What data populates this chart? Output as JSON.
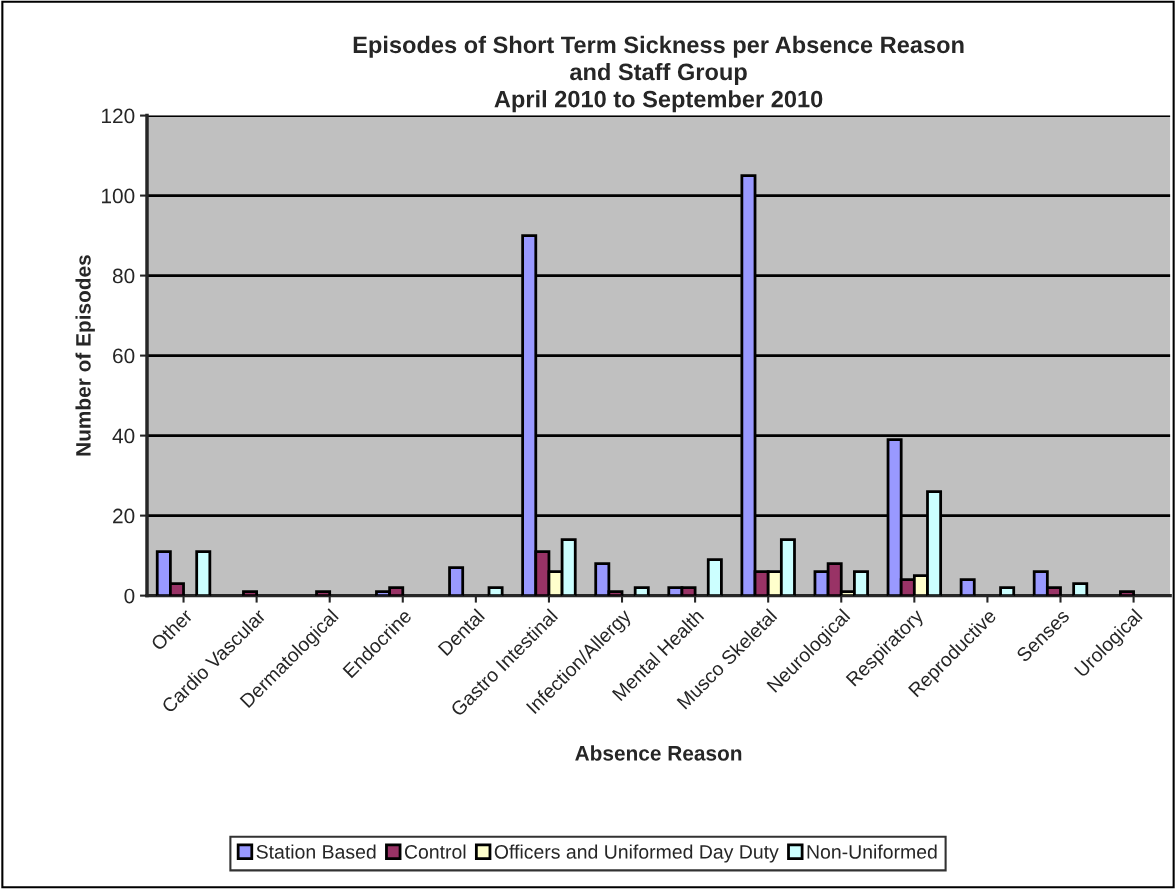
{
  "chart_data": {
    "type": "bar",
    "title": "Episodes of Short Term Sickness per Absence Reason\nand Staff Group\nApril 2010 to September 2010",
    "xlabel": "Absence Reason",
    "ylabel": "Number of Episodes",
    "categories": [
      "Other",
      "Cardio Vascular",
      "Dermatological",
      "Endocrine",
      "Dental",
      "Gastro Intestinal",
      "Infection/Allergy",
      "Mental Health",
      "Musco Skeletal",
      "Neurological",
      "Respiratory",
      "Reproductive",
      "Senses",
      "Urological"
    ],
    "series": [
      {
        "name": "Station Based",
        "color": "#9999ff",
        "values": [
          11,
          null,
          null,
          1,
          7,
          90,
          8,
          2,
          105,
          6,
          39,
          4,
          6,
          null
        ]
      },
      {
        "name": "Control",
        "color": "#993366",
        "values": [
          3,
          1,
          1,
          2,
          null,
          11,
          1,
          2,
          6,
          8,
          4,
          null,
          2,
          1
        ]
      },
      {
        "name": "Officers and Uniformed Day Duty",
        "color": "#ffffcc",
        "values": [
          null,
          null,
          null,
          null,
          null,
          6,
          null,
          null,
          6,
          1,
          5,
          null,
          null,
          null
        ]
      },
      {
        "name": "Non-Uniformed",
        "color": "#ccffff",
        "values": [
          11,
          null,
          null,
          null,
          2,
          14,
          2,
          9,
          14,
          6,
          26,
          2,
          3,
          null
        ]
      }
    ],
    "ylim": [
      0,
      120
    ],
    "yticks": [
      0,
      20,
      40,
      60,
      80,
      100,
      120
    ],
    "grid": "y",
    "legend": "bottom"
  }
}
